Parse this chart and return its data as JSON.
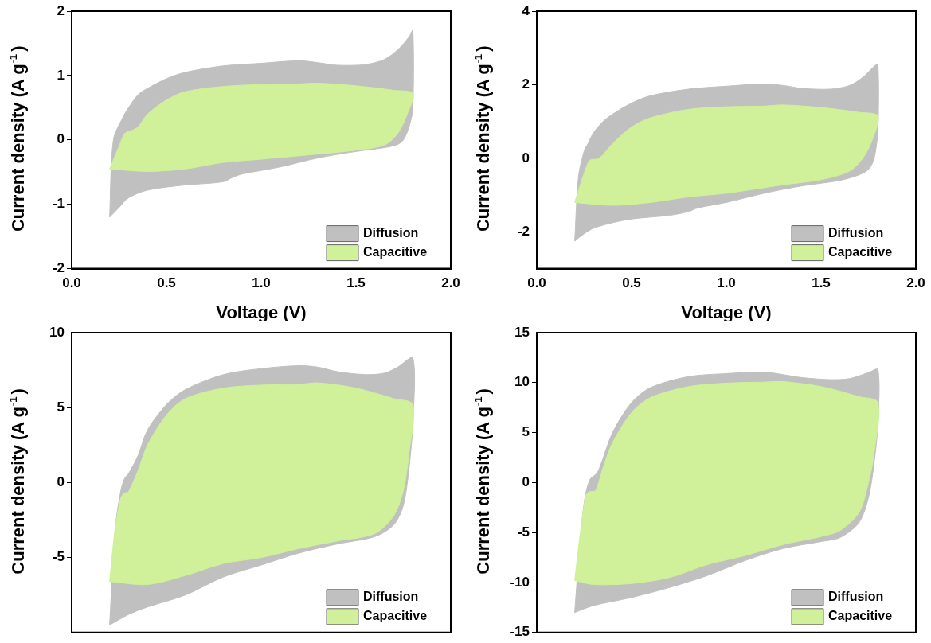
{
  "chart_data": [
    {
      "type": "area",
      "xlabel": "Voltage (V)",
      "ylabel": "Current density (A g$^{-1}$)",
      "xlim": [
        0,
        2
      ],
      "xticks": [
        {
          "value": 0,
          "label": "0.0"
        },
        {
          "value": 0.5,
          "label": "0.5"
        },
        {
          "value": 1,
          "label": "1.0"
        },
        {
          "value": 1.5,
          "label": "1.5"
        },
        {
          "value": 2,
          "label": "2.0"
        }
      ],
      "ylim": [
        -2,
        2
      ],
      "yticks": [
        -2,
        -1,
        0,
        1,
        2
      ],
      "legend": "bottom right",
      "grid": false,
      "series": [
        {
          "name": "Diffusion",
          "color": "#c0c0c0",
          "x": [
            0.2,
            0.22,
            0.27,
            0.3,
            0.35,
            0.4,
            0.5,
            0.6,
            0.8,
            1.0,
            1.2,
            1.3,
            1.4,
            1.55,
            1.65,
            1.72,
            1.78,
            1.8,
            1.8,
            1.78,
            1.75,
            1.72,
            1.65,
            1.5,
            1.3,
            1.1,
            0.9,
            0.85,
            0.8,
            0.6,
            0.4,
            0.3,
            0.25,
            0.2
          ],
          "values": [
            -1.2,
            0.0,
            0.35,
            0.5,
            0.7,
            0.8,
            0.95,
            1.05,
            1.15,
            1.19,
            1.23,
            1.2,
            1.16,
            1.17,
            1.25,
            1.4,
            1.6,
            1.7,
            0.5,
            0.2,
            0.0,
            -0.07,
            -0.12,
            -0.18,
            -0.28,
            -0.42,
            -0.53,
            -0.58,
            -0.65,
            -0.7,
            -0.78,
            -0.9,
            -1.05,
            -1.2
          ]
        },
        {
          "name": "Capacitive",
          "color": "#d0f09a",
          "x": [
            0.2,
            0.25,
            0.28,
            0.32,
            0.35,
            0.4,
            0.5,
            0.6,
            0.8,
            1.0,
            1.2,
            1.3,
            1.5,
            1.7,
            1.8,
            1.77,
            1.72,
            1.65,
            1.5,
            1.3,
            1.0,
            0.8,
            0.6,
            0.4,
            0.2
          ],
          "values": [
            -0.45,
            -0.1,
            0.1,
            0.15,
            0.2,
            0.4,
            0.62,
            0.75,
            0.83,
            0.86,
            0.87,
            0.88,
            0.84,
            0.77,
            0.72,
            0.4,
            0.1,
            -0.08,
            -0.16,
            -0.22,
            -0.3,
            -0.35,
            -0.45,
            -0.49,
            -0.45
          ]
        }
      ]
    },
    {
      "type": "area",
      "xlabel": "Voltage (V)",
      "ylabel": "Current density (A g$^{-1}$)",
      "xlim": [
        0,
        2
      ],
      "xticks": [
        {
          "value": 0,
          "label": "0.0"
        },
        {
          "value": 0.5,
          "label": "0.5"
        },
        {
          "value": 1,
          "label": "1.0"
        },
        {
          "value": 1.5,
          "label": "1.5"
        },
        {
          "value": 2,
          "label": "2.0"
        }
      ],
      "ylim": [
        -3,
        4
      ],
      "yticks": [
        -2,
        0,
        2,
        4
      ],
      "legend": "bottom right",
      "grid": false,
      "series": [
        {
          "name": "Diffusion",
          "color": "#c0c0c0",
          "x": [
            0.2,
            0.22,
            0.25,
            0.27,
            0.3,
            0.35,
            0.4,
            0.5,
            0.6,
            0.8,
            1.0,
            1.2,
            1.3,
            1.4,
            1.55,
            1.65,
            1.72,
            1.78,
            1.8,
            1.8,
            1.78,
            1.75,
            1.7,
            1.6,
            1.4,
            1.2,
            1.0,
            0.85,
            0.8,
            0.7,
            0.5,
            0.4,
            0.3,
            0.25,
            0.2
          ],
          "values": [
            -2.25,
            -0.5,
            0.2,
            0.4,
            0.7,
            1.0,
            1.2,
            1.5,
            1.7,
            1.88,
            1.96,
            2.02,
            1.98,
            1.9,
            1.88,
            1.98,
            2.2,
            2.5,
            2.55,
            0.8,
            0.0,
            -0.3,
            -0.45,
            -0.6,
            -0.75,
            -0.95,
            -1.2,
            -1.35,
            -1.45,
            -1.55,
            -1.65,
            -1.75,
            -1.9,
            -2.05,
            -2.25
          ]
        },
        {
          "name": "Capacitive",
          "color": "#d0f09a",
          "x": [
            0.2,
            0.25,
            0.28,
            0.32,
            0.35,
            0.4,
            0.5,
            0.6,
            0.8,
            1.0,
            1.2,
            1.3,
            1.5,
            1.7,
            1.8,
            1.77,
            1.72,
            1.65,
            1.5,
            1.3,
            1.0,
            0.8,
            0.6,
            0.4,
            0.2
          ],
          "values": [
            -1.2,
            -0.4,
            -0.05,
            -0.02,
            0.1,
            0.4,
            0.85,
            1.1,
            1.33,
            1.4,
            1.42,
            1.45,
            1.38,
            1.25,
            1.15,
            0.5,
            0.0,
            -0.35,
            -0.58,
            -0.72,
            -0.95,
            -1.05,
            -1.2,
            -1.28,
            -1.2
          ]
        }
      ]
    },
    {
      "type": "area",
      "ylabel": "Current density (A g$^{-1}$)",
      "xlim": [
        0,
        2
      ],
      "ylim": [
        -10,
        10
      ],
      "yticks": [
        -5,
        0,
        5,
        10
      ],
      "tick_labels": "y",
      "legend": "bottom right",
      "grid": false,
      "series": [
        {
          "name": "Diffusion",
          "color": "#c0c0c0",
          "x": [
            0.2,
            0.23,
            0.26,
            0.28,
            0.3,
            0.35,
            0.4,
            0.5,
            0.6,
            0.8,
            1.0,
            1.2,
            1.3,
            1.4,
            1.55,
            1.65,
            1.72,
            1.8,
            1.8,
            1.78,
            1.75,
            1.7,
            1.6,
            1.4,
            1.2,
            1.0,
            0.8,
            0.6,
            0.4,
            0.3,
            0.2
          ],
          "values": [
            -9.5,
            -3,
            -0.5,
            0.3,
            0.6,
            1.8,
            3.5,
            5.2,
            6.2,
            7.2,
            7.6,
            7.8,
            7.7,
            7.4,
            7.2,
            7.3,
            7.7,
            8.3,
            4.0,
            1.0,
            -1.5,
            -2.8,
            -3.6,
            -4.1,
            -4.7,
            -5.5,
            -6.3,
            -7.5,
            -8.3,
            -8.8,
            -9.5
          ]
        },
        {
          "name": "Capacitive",
          "color": "#d0f09a",
          "x": [
            0.2,
            0.23,
            0.26,
            0.28,
            0.3,
            0.35,
            0.4,
            0.5,
            0.6,
            0.8,
            1.0,
            1.2,
            1.3,
            1.5,
            1.7,
            1.8,
            1.78,
            1.75,
            1.7,
            1.6,
            1.4,
            1.2,
            1.0,
            0.8,
            0.6,
            0.4,
            0.2
          ],
          "values": [
            -6.6,
            -3,
            -1,
            -0.7,
            -0.6,
            0.8,
            2.5,
            4.5,
            5.6,
            6.3,
            6.5,
            6.55,
            6.65,
            6.3,
            5.6,
            5.2,
            2.0,
            -0.5,
            -2.2,
            -3.4,
            -3.9,
            -4.4,
            -5.0,
            -5.4,
            -6.2,
            -6.8,
            -6.6
          ]
        }
      ]
    },
    {
      "type": "area",
      "ylabel": "Current density (A g$^{-1}$)",
      "xlim": [
        0,
        2
      ],
      "ylim": [
        -15,
        15
      ],
      "yticks": [
        -15,
        -10,
        -5,
        0,
        5,
        10,
        15
      ],
      "tick_labels": "y",
      "legend": "bottom right",
      "grid": false,
      "series": [
        {
          "name": "Diffusion",
          "color": "#c0c0c0",
          "x": [
            0.2,
            0.22,
            0.25,
            0.28,
            0.32,
            0.4,
            0.5,
            0.6,
            0.8,
            1.0,
            1.2,
            1.3,
            1.4,
            1.55,
            1.65,
            1.75,
            1.8,
            1.8,
            1.78,
            1.75,
            1.7,
            1.6,
            1.5,
            1.3,
            1.1,
            0.9,
            0.7,
            0.5,
            0.3,
            0.2
          ],
          "values": [
            -13,
            -8,
            -2,
            0.3,
            1.0,
            5,
            8,
            9.5,
            10.6,
            10.9,
            11.05,
            10.8,
            10.5,
            10.3,
            10.4,
            11,
            11.3,
            6,
            2,
            -1.5,
            -4.0,
            -5.5,
            -5.9,
            -6.6,
            -7.8,
            -9.3,
            -10.5,
            -11.5,
            -12.3,
            -13
          ]
        },
        {
          "name": "Capacitive",
          "color": "#d0f09a",
          "x": [
            0.2,
            0.23,
            0.26,
            0.28,
            0.31,
            0.35,
            0.4,
            0.5,
            0.6,
            0.8,
            1.0,
            1.2,
            1.3,
            1.5,
            1.7,
            1.8,
            1.78,
            1.75,
            1.7,
            1.6,
            1.5,
            1.3,
            1.1,
            0.9,
            0.7,
            0.5,
            0.3,
            0.2
          ],
          "values": [
            -9.8,
            -5,
            -1.2,
            -0.9,
            -0.8,
            1.5,
            4,
            7,
            8.5,
            9.6,
            9.95,
            10.05,
            10.1,
            9.6,
            8.6,
            8.0,
            3.0,
            0,
            -3.0,
            -4.8,
            -5.4,
            -6.2,
            -7.3,
            -8.2,
            -9.5,
            -10.1,
            -10.2,
            -9.8
          ]
        }
      ]
    }
  ]
}
